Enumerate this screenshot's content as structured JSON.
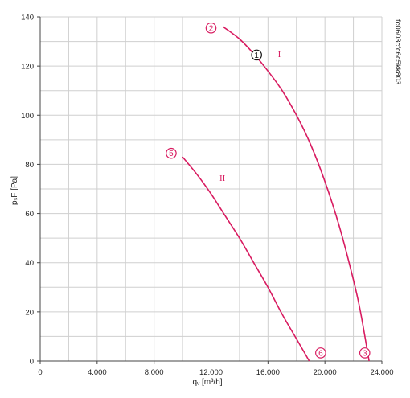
{
  "chart_data": {
    "type": "line",
    "xlabel": "qᵥ [m³/h]",
    "ylabel": "pₛF [Pa]",
    "xlim": [
      0,
      24000
    ],
    "ylim": [
      0,
      140
    ],
    "x_ticks": [
      0,
      4000,
      8000,
      12000,
      16000,
      20000,
      24000
    ],
    "x_tick_labels": [
      "0",
      "4.000",
      "8.000",
      "12.000",
      "16.000",
      "20.000",
      "24.000"
    ],
    "y_ticks": [
      0,
      20,
      40,
      60,
      80,
      100,
      120,
      140
    ],
    "y_tick_labels": [
      "0",
      "20",
      "40",
      "60",
      "80",
      "100",
      "120",
      "140"
    ],
    "grid": true,
    "code_label": "fc0603cfc6c5kk803",
    "series": [
      {
        "name": "I",
        "color": "#d81b60",
        "x": [
          12850,
          14000,
          15000,
          16000,
          17000,
          18000,
          19000,
          20000,
          21000,
          22000,
          22500,
          23100
        ],
        "y": [
          136,
          131,
          125,
          118,
          110,
          100,
          88,
          73,
          55,
          33,
          20,
          0
        ]
      },
      {
        "name": "II",
        "color": "#d81b60",
        "x": [
          10000,
          11000,
          12000,
          13000,
          14000,
          15000,
          16000,
          17000,
          18000,
          18900
        ],
        "y": [
          83,
          76,
          68,
          59,
          50,
          40,
          30,
          19,
          9,
          0
        ]
      }
    ],
    "annotations": [
      {
        "label": "1",
        "x": 15200,
        "y": 124.5,
        "style": "black-circle"
      },
      {
        "label": "2",
        "x": 12000,
        "y": 135.5,
        "style": "pink-circle"
      },
      {
        "label": "3",
        "x": 22800,
        "y": 3.3,
        "style": "pink-circle"
      },
      {
        "label": "5",
        "x": 9200,
        "y": 84.5,
        "style": "pink-circle"
      },
      {
        "label": "6",
        "x": 19700,
        "y": 3.3,
        "style": "pink-circle"
      },
      {
        "label": "I",
        "x": 16800,
        "y": 125,
        "style": "roman"
      },
      {
        "label": "II",
        "x": 12800,
        "y": 74.5,
        "style": "roman"
      }
    ]
  }
}
